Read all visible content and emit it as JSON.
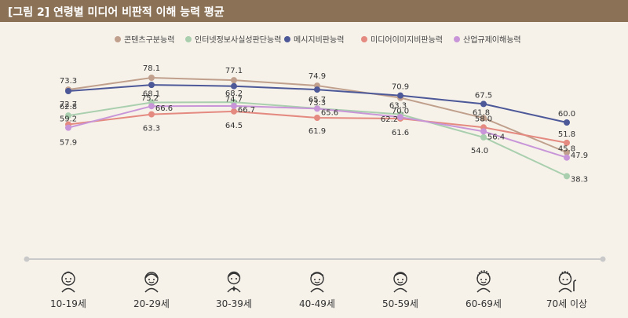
{
  "title": "[그림 2]  연령별 미디어 비판적 이해 능력 평균",
  "colors": {
    "title_bg": "#8b7257",
    "axis_line": "#c9c9c9",
    "series": [
      "#c0a08c",
      "#a9cfae",
      "#4c5898",
      "#e48a80",
      "#c896d8"
    ]
  },
  "icons": [
    "child-face-icon",
    "young-adult-face-icon",
    "adult-face-icon",
    "middle-age-face-icon",
    "senior-face-icon",
    "elder-face-icon",
    "old-person-with-cane-icon"
  ],
  "chart_data": {
    "type": "line",
    "categories": [
      "10-19세",
      "20-29세",
      "30-39세",
      "40-49세",
      "50-59세",
      "60-69세",
      "70세 이상"
    ],
    "legend_position": "top-center",
    "grid": false,
    "series": [
      {
        "name": "콘텐츠구분능력",
        "values": [
          73.3,
          78.1,
          77.1,
          74.9,
          70.0,
          61.8,
          47.9
        ]
      },
      {
        "name": "인터넷정보사실성판단능력",
        "values": [
          62.8,
          68.1,
          68.2,
          65.7,
          63.3,
          54.0,
          38.3
        ]
      },
      {
        "name": "메시지비판능력",
        "values": [
          72.7,
          75.2,
          74.7,
          73.3,
          70.9,
          67.5,
          60.0
        ]
      },
      {
        "name": "미디어이미지비판능력",
        "values": [
          59.2,
          63.3,
          64.5,
          61.9,
          61.6,
          58.0,
          51.8
        ]
      },
      {
        "name": "산업규제이해능력",
        "values": [
          57.9,
          66.6,
          66.7,
          65.6,
          62.2,
          56.4,
          45.8
        ]
      }
    ]
  }
}
